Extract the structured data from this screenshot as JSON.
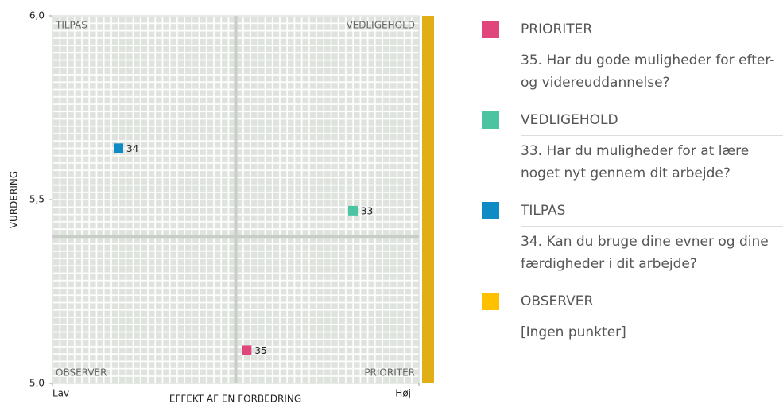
{
  "chart_data": {
    "type": "scatter",
    "y_label": "VURDERING",
    "x_label": "EFFEKT AF EN FORBEDRING",
    "ylim": [
      5.0,
      6.0
    ],
    "yticks": [
      {
        "value": 5.0,
        "label": "5,0"
      },
      {
        "value": 5.5,
        "label": "5,5"
      },
      {
        "value": 6.0,
        "label": "6,0"
      }
    ],
    "xlim": [
      0,
      1
    ],
    "xticks": [
      {
        "value": 0,
        "label": "Lav"
      },
      {
        "value": 1,
        "label": "Høj"
      }
    ],
    "dividers": {
      "x": 0.5,
      "y": 5.4
    },
    "quadrants": {
      "top_left": "TILPAS",
      "top_right": "VEDLIGEHOLD",
      "bottom_left": "OBSERVER",
      "bottom_right": "PRIORITER"
    },
    "x": [
      0.18,
      0.82,
      0.53
    ],
    "y": [
      5.64,
      5.47,
      5.09
    ],
    "labels": [
      "34",
      "33",
      "35"
    ],
    "colors": [
      "#0e8ac4",
      "#4cc4a1",
      "#e0457b"
    ],
    "legend": [
      {
        "name": "PRIORITER",
        "color": "#e0457b",
        "text": "35. Har du gode muligheder for efter- og videreuddannelse?"
      },
      {
        "name": "VEDLIGEHOLD",
        "color": "#4cc4a1",
        "text": "33. Har du muligheder for at lære noget nyt gennem dit arbejde?"
      },
      {
        "name": "TILPAS",
        "color": "#0e8ac4",
        "text": "34. Kan du bruge dine evner og dine færdigheder i dit arbejde?"
      },
      {
        "name": "OBSERVER",
        "color": "#ffc000",
        "text": "[Ingen punkter]"
      }
    ]
  }
}
